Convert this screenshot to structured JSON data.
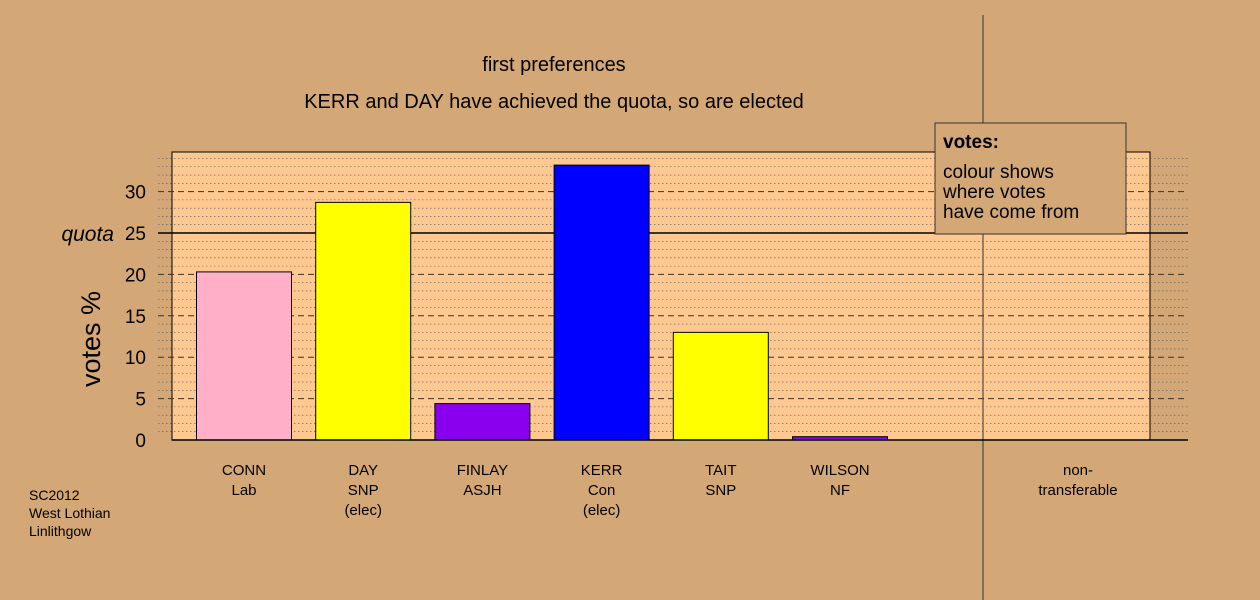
{
  "chart_data": {
    "type": "bar",
    "title": "first preferences",
    "subtitle": "KERR and DAY have achieved the quota, so are elected",
    "ylabel": "votes %",
    "ylim": [
      0,
      35
    ],
    "yticks": [
      0,
      5,
      10,
      15,
      20,
      25,
      30
    ],
    "quota": {
      "label": "quota",
      "value": 25
    },
    "categories": [
      {
        "name": "CONN",
        "party": "Lab",
        "status": ""
      },
      {
        "name": "DAY",
        "party": "SNP",
        "status": "(elec)"
      },
      {
        "name": "FINLAY",
        "party": "ASJH",
        "status": ""
      },
      {
        "name": "KERR",
        "party": "Con",
        "status": "(elec)"
      },
      {
        "name": "TAIT",
        "party": "SNP",
        "status": ""
      },
      {
        "name": "WILSON",
        "party": "NF",
        "status": ""
      }
    ],
    "values": [
      20.3,
      28.7,
      4.4,
      33.2,
      13.0,
      0.4
    ],
    "colors": [
      "#ffb0c8",
      "#ffff00",
      "#8800ee",
      "#0000ff",
      "#ffff00",
      "#8800ee"
    ],
    "nontransferable": {
      "label_line1": "non-",
      "label_line2": "transferable",
      "value": 0
    },
    "legend": {
      "heading": "votes:",
      "lines": [
        "colour shows",
        "where votes",
        "have come from"
      ],
      "placement": "top-right"
    },
    "grid": "dashed",
    "source": [
      "SC2012",
      "West Lothian",
      "Linlithgow"
    ]
  },
  "colors": {
    "background": "#d4a876",
    "plot_background": "#ffc890"
  }
}
